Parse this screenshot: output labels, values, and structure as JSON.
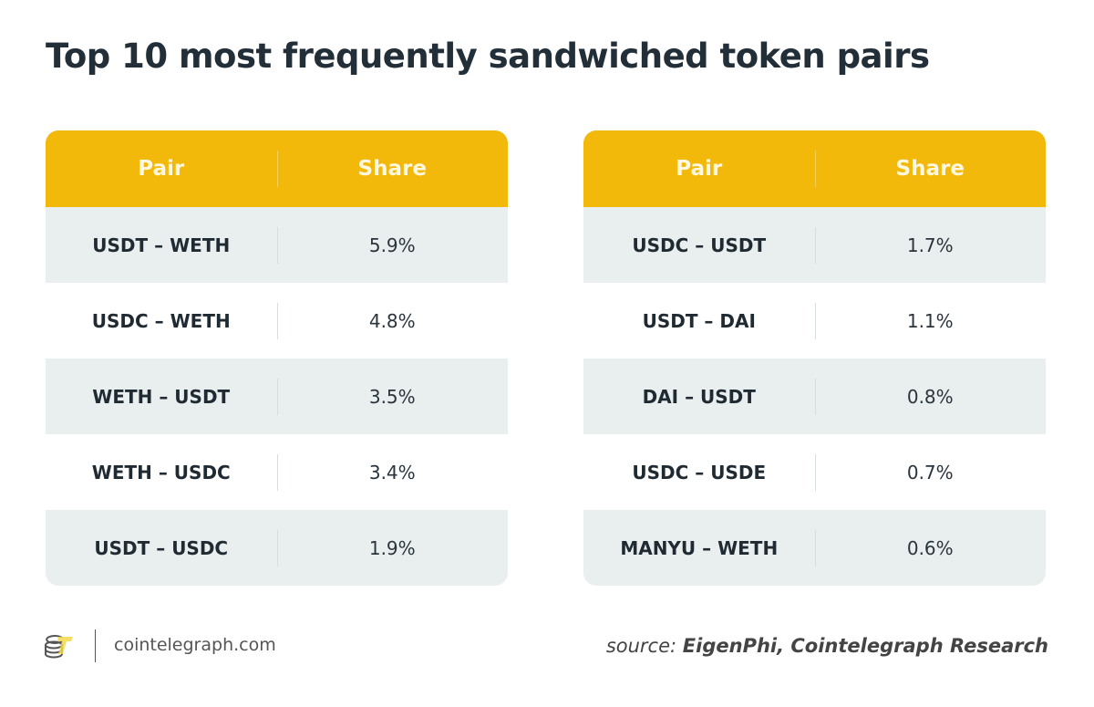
{
  "title": "Top 10 most frequently sandwiched token pairs",
  "colors": {
    "header": "#f2b90b",
    "stripe": "#e9efee",
    "text": "#1f2a33"
  },
  "chart_data": {
    "type": "table",
    "title": "Top 10 most frequently sandwiched token pairs",
    "columns": [
      "Pair",
      "Share"
    ],
    "tables": [
      {
        "header": {
          "pair": "Pair",
          "share": "Share"
        },
        "rows": [
          {
            "pair": "USDT – WETH",
            "share": "5.9%"
          },
          {
            "pair": "USDC – WETH",
            "share": "4.8%"
          },
          {
            "pair": "WETH – USDT",
            "share": "3.5%"
          },
          {
            "pair": "WETH – USDC",
            "share": "3.4%"
          },
          {
            "pair": "USDT – USDC",
            "share": "1.9%"
          }
        ]
      },
      {
        "header": {
          "pair": "Pair",
          "share": "Share"
        },
        "rows": [
          {
            "pair": "USDC – USDT",
            "share": "1.7%"
          },
          {
            "pair": "USDT – DAI",
            "share": "1.1%"
          },
          {
            "pair": "DAI – USDT",
            "share": "0.8%"
          },
          {
            "pair": "USDC – USDE",
            "share": "0.7%"
          },
          {
            "pair": "MANYU – WETH",
            "share": "0.6%"
          }
        ]
      }
    ]
  },
  "footer": {
    "logo_icon": "cointelegraph-logo-icon",
    "site": "cointelegraph.com",
    "source_prefix": "source:",
    "source_text": "EigenPhi, Cointelegraph Research"
  }
}
